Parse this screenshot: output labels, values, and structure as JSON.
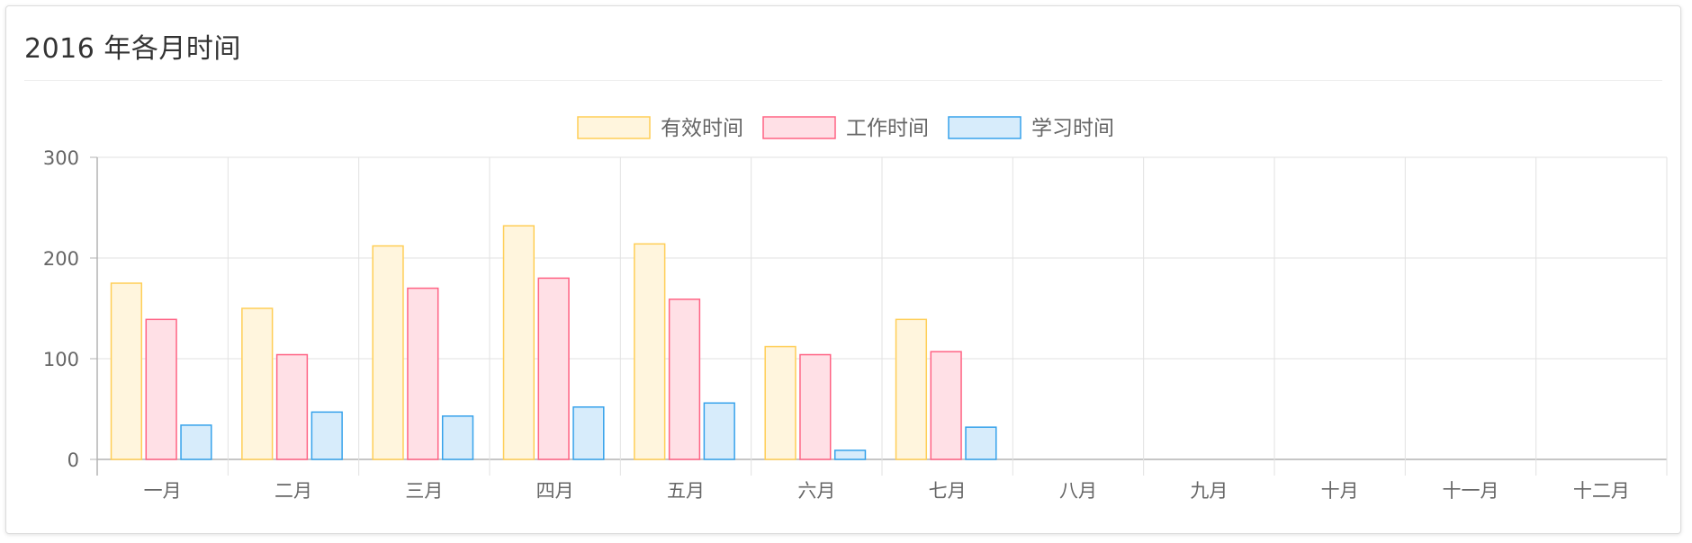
{
  "panel": {
    "title": "2016 年各月时间"
  },
  "chart_data": {
    "type": "bar",
    "categories": [
      "一月",
      "二月",
      "三月",
      "四月",
      "五月",
      "六月",
      "七月",
      "八月",
      "九月",
      "十月",
      "十一月",
      "十二月"
    ],
    "series": [
      {
        "name": "有效时间",
        "values": [
          175,
          150,
          212,
          232,
          214,
          112,
          139,
          0,
          0,
          0,
          0,
          0
        ],
        "fill": "#fff5dd",
        "stroke": "#ffce56"
      },
      {
        "name": "工作时间",
        "values": [
          139,
          104,
          170,
          180,
          159,
          104,
          107,
          0,
          0,
          0,
          0,
          0
        ],
        "fill": "#ffe0e6",
        "stroke": "#ff6384"
      },
      {
        "name": "学习时间",
        "values": [
          34,
          47,
          43,
          52,
          56,
          9,
          32,
          0,
          0,
          0,
          0,
          0
        ],
        "fill": "#d7ecfb",
        "stroke": "#36a2eb"
      }
    ],
    "yticks": [
      "0",
      "100",
      "200",
      "300"
    ],
    "ylim": [
      0,
      300
    ],
    "grid": true,
    "legend": "top-center"
  }
}
